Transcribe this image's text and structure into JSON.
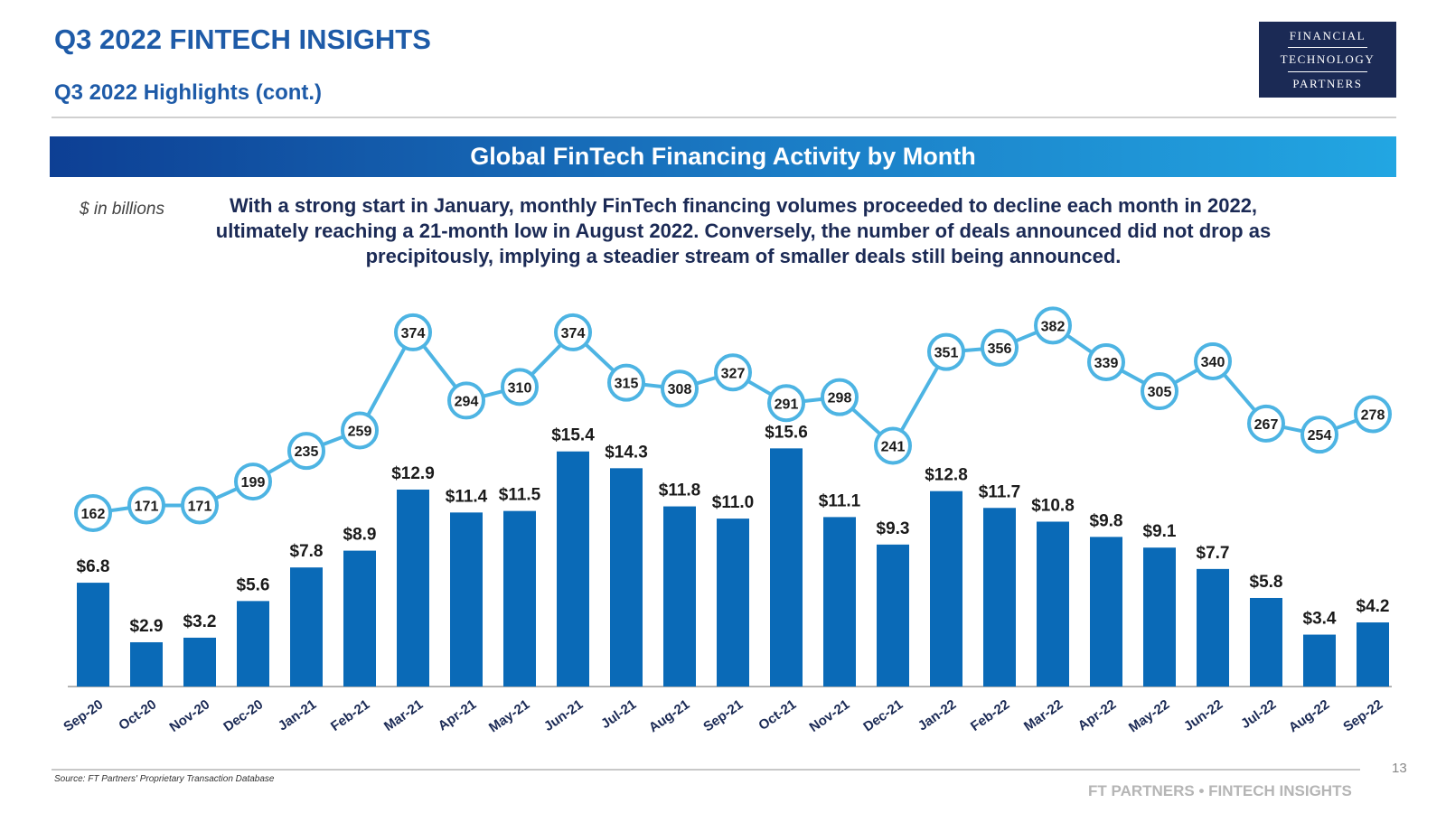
{
  "header": {
    "title": "Q3 2022 FINTECH INSIGHTS",
    "subtitle": "Q3 2022 Highlights (cont.)"
  },
  "logo": {
    "line1": "FINANCIAL",
    "line2": "TECHNOLOGY",
    "line3": "PARTNERS"
  },
  "banner": {
    "title": "Global FinTech Financing Activity by Month"
  },
  "units_label": "$ in billions",
  "description": "With a strong start in January, monthly FinTech financing volumes proceeded to decline each month in 2022, ultimately reaching a 21-month low in August 2022. Conversely, the number of deals announced did not drop as precipitously, implying a steadier stream of smaller deals still being announced.",
  "footer": {
    "source": "Source: FT Partners' Proprietary Transaction Database",
    "page_number": "13",
    "brand": "FT PARTNERS • FINTECH INSIGHTS"
  },
  "colors": {
    "title_blue": "#1e5ba8",
    "bar_blue": "#0a6ab7",
    "line_blue": "#4db4e3",
    "text_navy": "#1b2a55"
  },
  "chart_data": {
    "type": "bar",
    "title": "Global FinTech Financing Activity by Month",
    "categories": [
      "Sep-20",
      "Oct-20",
      "Nov-20",
      "Dec-20",
      "Jan-21",
      "Feb-21",
      "Mar-21",
      "Apr-21",
      "May-21",
      "Jun-21",
      "Jul-21",
      "Aug-21",
      "Sep-21",
      "Oct-21",
      "Nov-21",
      "Dec-21",
      "Jan-22",
      "Feb-22",
      "Mar-22",
      "Apr-22",
      "May-22",
      "Jun-22",
      "Jul-22",
      "Aug-22",
      "Sep-22"
    ],
    "series": [
      {
        "type": "bar",
        "values": [
          6.8,
          2.9,
          3.2,
          5.6,
          7.8,
          8.9,
          12.9,
          11.4,
          11.5,
          15.4,
          14.3,
          11.8,
          11.0,
          15.6,
          11.1,
          9.3,
          12.8,
          11.7,
          10.8,
          9.8,
          9.1,
          7.7,
          5.8,
          3.4,
          4.2
        ],
        "labels": [
          "$6.8",
          "$2.9",
          "$3.2",
          "$5.6",
          "$7.8",
          "$8.9",
          "$12.9",
          "$11.4",
          "$11.5",
          "$15.4",
          "$14.3",
          "$11.8",
          "$11.0",
          "$15.6",
          "$11.1",
          "$9.3",
          "$12.8",
          "$11.7",
          "$10.8",
          "$9.8",
          "$9.1",
          "$7.7",
          "$5.8",
          "$3.4",
          "$4.2"
        ]
      },
      {
        "type": "line",
        "values": [
          162,
          171,
          171,
          199,
          235,
          259,
          374,
          294,
          310,
          374,
          315,
          308,
          327,
          291,
          298,
          241,
          351,
          356,
          382,
          339,
          305,
          340,
          267,
          254,
          278
        ]
      }
    ],
    "grid": false,
    "legend": "none"
  }
}
